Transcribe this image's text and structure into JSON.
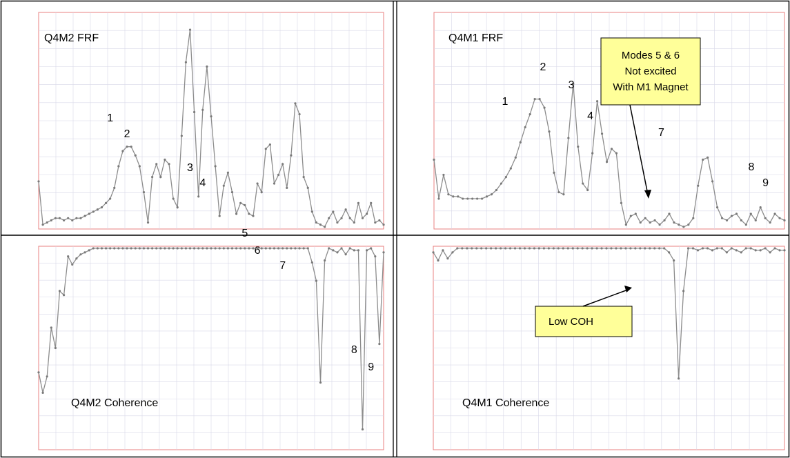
{
  "colors": {
    "trace": "#8c8c8c",
    "trace_point": "#7a7a7a",
    "plot_border": "#e88080",
    "grid": "#d8d8e8",
    "tick_text": "#6f6fc8",
    "callout_fill": "#ffff99",
    "frame": "#000000"
  },
  "chart_data": [
    {
      "id": "q4m2-frf",
      "type": "line",
      "title": "Q4M2 FRF",
      "mode_labels": [
        "1",
        "2",
        "3",
        "4",
        "5",
        "6",
        "7",
        "8",
        "9"
      ],
      "mode_label_x": [
        17,
        21,
        36,
        39,
        49,
        52,
        58,
        75,
        79
      ],
      "grid": true,
      "xlim": [
        0,
        82
      ],
      "ylim": [
        0,
        1
      ],
      "y": [
        0.22,
        0.02,
        0.03,
        0.04,
        0.05,
        0.05,
        0.04,
        0.05,
        0.04,
        0.05,
        0.05,
        0.06,
        0.07,
        0.08,
        0.09,
        0.1,
        0.12,
        0.14,
        0.19,
        0.29,
        0.36,
        0.38,
        0.38,
        0.34,
        0.29,
        0.17,
        0.03,
        0.24,
        0.3,
        0.24,
        0.32,
        0.3,
        0.14,
        0.1,
        0.43,
        0.77,
        0.92,
        0.54,
        0.15,
        0.55,
        0.75,
        0.52,
        0.29,
        0.06,
        0.2,
        0.26,
        0.17,
        0.07,
        0.12,
        0.11,
        0.07,
        0.06,
        0.21,
        0.17,
        0.37,
        0.39,
        0.21,
        0.25,
        0.3,
        0.19,
        0.34,
        0.58,
        0.53,
        0.24,
        0.19,
        0.08,
        0.03,
        0.02,
        0.01,
        0.05,
        0.08,
        0.03,
        0.05,
        0.09,
        0.05,
        0.03,
        0.12,
        0.05,
        0.07,
        0.12,
        0.03,
        0.04,
        0.02
      ],
      "annotations": []
    },
    {
      "id": "q4m1-frf",
      "type": "line",
      "title": "Q4M1 FRF",
      "mode_labels": [
        "1",
        "2",
        "3",
        "4",
        "7",
        "8",
        "9"
      ],
      "mode_label_x": [
        15,
        23,
        29,
        33,
        48,
        67,
        70
      ],
      "grid": true,
      "xlim": [
        0,
        74
      ],
      "ylim": [
        0,
        1
      ],
      "y": [
        0.32,
        0.14,
        0.25,
        0.16,
        0.15,
        0.15,
        0.14,
        0.14,
        0.14,
        0.14,
        0.14,
        0.15,
        0.16,
        0.18,
        0.21,
        0.24,
        0.28,
        0.33,
        0.4,
        0.47,
        0.53,
        0.6,
        0.6,
        0.56,
        0.45,
        0.26,
        0.17,
        0.16,
        0.42,
        0.67,
        0.38,
        0.21,
        0.18,
        0.35,
        0.59,
        0.44,
        0.31,
        0.37,
        0.35,
        0.12,
        0.02,
        0.06,
        0.07,
        0.03,
        0.05,
        0.03,
        0.04,
        0.02,
        0.04,
        0.07,
        0.03,
        0.02,
        0.01,
        0.02,
        0.05,
        0.2,
        0.32,
        0.33,
        0.22,
        0.1,
        0.05,
        0.04,
        0.06,
        0.07,
        0.04,
        0.02,
        0.07,
        0.04,
        0.1,
        0.05,
        0.03,
        0.07,
        0.05,
        0.04
      ],
      "annotations": [
        {
          "text_lines": [
            "Modes 5 & 6",
            "Not excited",
            "With M1 Magnet"
          ]
        }
      ]
    },
    {
      "id": "q4m2-coherence",
      "type": "line",
      "title": "Q4M2 Coherence",
      "grid": true,
      "xlim": [
        0,
        82
      ],
      "ylim": [
        0,
        1
      ],
      "y": [
        0.38,
        0.28,
        0.36,
        0.6,
        0.5,
        0.78,
        0.76,
        0.95,
        0.91,
        0.94,
        0.96,
        0.97,
        0.98,
        0.99,
        0.99,
        0.99,
        0.99,
        0.99,
        0.99,
        0.99,
        0.99,
        0.99,
        0.99,
        0.99,
        0.99,
        0.99,
        0.99,
        0.99,
        0.99,
        0.99,
        0.99,
        0.99,
        0.99,
        0.99,
        0.99,
        0.99,
        0.99,
        0.99,
        0.99,
        0.99,
        0.99,
        0.99,
        0.99,
        0.99,
        0.99,
        0.99,
        0.99,
        0.99,
        0.99,
        0.99,
        0.99,
        0.99,
        0.99,
        0.99,
        0.99,
        0.99,
        0.99,
        0.99,
        0.99,
        0.99,
        0.99,
        0.99,
        0.99,
        0.99,
        0.99,
        0.92,
        0.83,
        0.33,
        0.93,
        0.99,
        0.98,
        0.97,
        0.99,
        0.96,
        0.99,
        0.98,
        0.98,
        0.1,
        0.98,
        0.99,
        0.95,
        0.52,
        0.97
      ],
      "annotations": []
    },
    {
      "id": "q4m1-coherence",
      "type": "line",
      "title": "Q4M1 Coherence",
      "grid": true,
      "xlim": [
        0,
        74
      ],
      "ylim": [
        0,
        1
      ],
      "y": [
        0.97,
        0.93,
        0.98,
        0.94,
        0.97,
        0.99,
        0.99,
        0.99,
        0.99,
        0.99,
        0.99,
        0.99,
        0.99,
        0.99,
        0.99,
        0.99,
        0.99,
        0.99,
        0.99,
        0.99,
        0.99,
        0.99,
        0.99,
        0.99,
        0.99,
        0.99,
        0.99,
        0.99,
        0.99,
        0.99,
        0.99,
        0.99,
        0.99,
        0.99,
        0.99,
        0.99,
        0.99,
        0.99,
        0.99,
        0.99,
        0.99,
        0.99,
        0.99,
        0.99,
        0.99,
        0.99,
        0.99,
        0.99,
        0.99,
        0.97,
        0.93,
        0.35,
        0.78,
        0.99,
        0.99,
        0.98,
        0.99,
        0.99,
        0.98,
        0.99,
        0.99,
        0.97,
        0.99,
        0.98,
        0.97,
        0.99,
        0.99,
        0.98,
        0.98,
        0.99,
        0.97,
        0.99,
        0.98,
        0.98
      ],
      "annotations": [
        {
          "text_lines": [
            "Low COH"
          ]
        }
      ]
    }
  ]
}
